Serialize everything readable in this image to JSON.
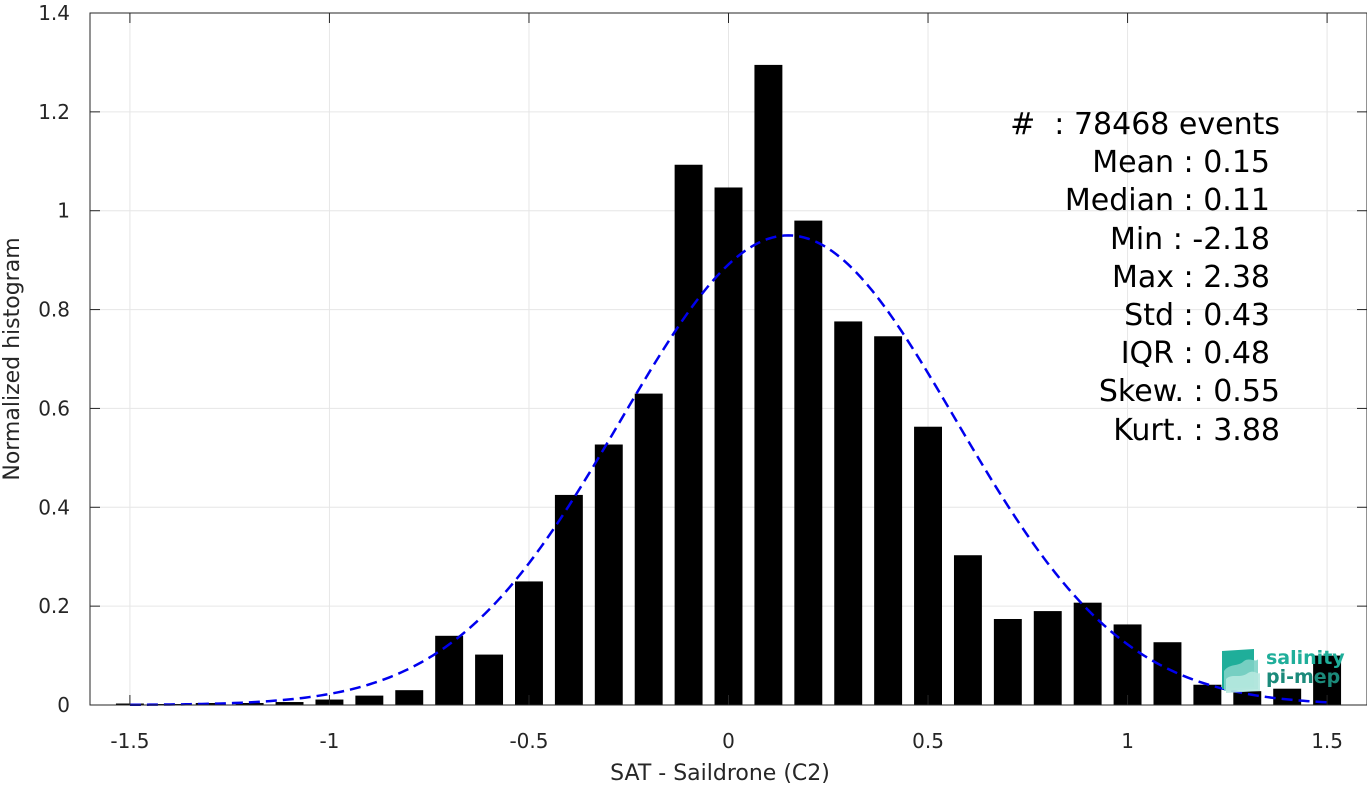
{
  "chart_data": {
    "type": "bar",
    "xlabel": "SAT - Saildrone (C2)",
    "ylabel": "Normalized histogram",
    "xlim": [
      -1.6,
      1.6
    ],
    "ylim": [
      0,
      1.4
    ],
    "xticks": [
      -1.5,
      -1,
      -0.5,
      0,
      0.5,
      1,
      1.5
    ],
    "xtick_labels": [
      "-1.5",
      "-1",
      "-0.5",
      "0",
      "0.5",
      "1",
      "1.5"
    ],
    "yticks": [
      0,
      0.2,
      0.4,
      0.6,
      0.8,
      1,
      1.2,
      1.4
    ],
    "ytick_labels": [
      "0",
      "0.2",
      "0.4",
      "0.6",
      "0.8",
      "1",
      "1.2",
      "1.4"
    ],
    "grid": true,
    "bin_width": 0.1,
    "x": [
      -1.5,
      -1.4,
      -1.3,
      -1.2,
      -1.1,
      -1.0,
      -0.9,
      -0.8,
      -0.7,
      -0.6,
      -0.5,
      -0.4,
      -0.3,
      -0.2,
      -0.1,
      0.0,
      0.1,
      0.2,
      0.3,
      0.4,
      0.5,
      0.6,
      0.7,
      0.8,
      0.9,
      1.0,
      1.1,
      1.2,
      1.3,
      1.4,
      1.5
    ],
    "values": [
      0.003,
      0.002,
      0.004,
      0.004,
      0.006,
      0.011,
      0.019,
      0.03,
      0.14,
      0.102,
      0.25,
      0.425,
      0.527,
      0.63,
      1.093,
      1.047,
      1.295,
      0.98,
      0.776,
      0.746,
      0.563,
      0.303,
      0.174,
      0.19,
      0.207,
      0.163,
      0.127,
      0.041,
      0.028,
      0.033,
      0.1
    ],
    "fit_curve": {
      "type": "gaussian",
      "mean": 0.15,
      "std": 0.42,
      "peak": 0.95,
      "color": "#0000ee",
      "style": "dashed"
    },
    "bar_color": "#000000"
  },
  "stats": {
    "rows": [
      {
        "label": "#  : ",
        "value": "78468 events"
      },
      {
        "label": "Mean : ",
        "value": "0.15"
      },
      {
        "label": "Median : ",
        "value": "0.11"
      },
      {
        "label": "Min : ",
        "value": "-2.18"
      },
      {
        "label": "Max : ",
        "value": "2.38"
      },
      {
        "label": "Std : ",
        "value": "0.43"
      },
      {
        "label": "IQR : ",
        "value": "0.48"
      },
      {
        "label": "Skew. : ",
        "value": "0.55"
      },
      {
        "label": "Kurt. : ",
        "value": "3.88"
      }
    ]
  },
  "logo": {
    "line1": "salinity",
    "line2": "pi-mep",
    "color1": "#1fae9a",
    "color2": "#1b8a7a"
  }
}
